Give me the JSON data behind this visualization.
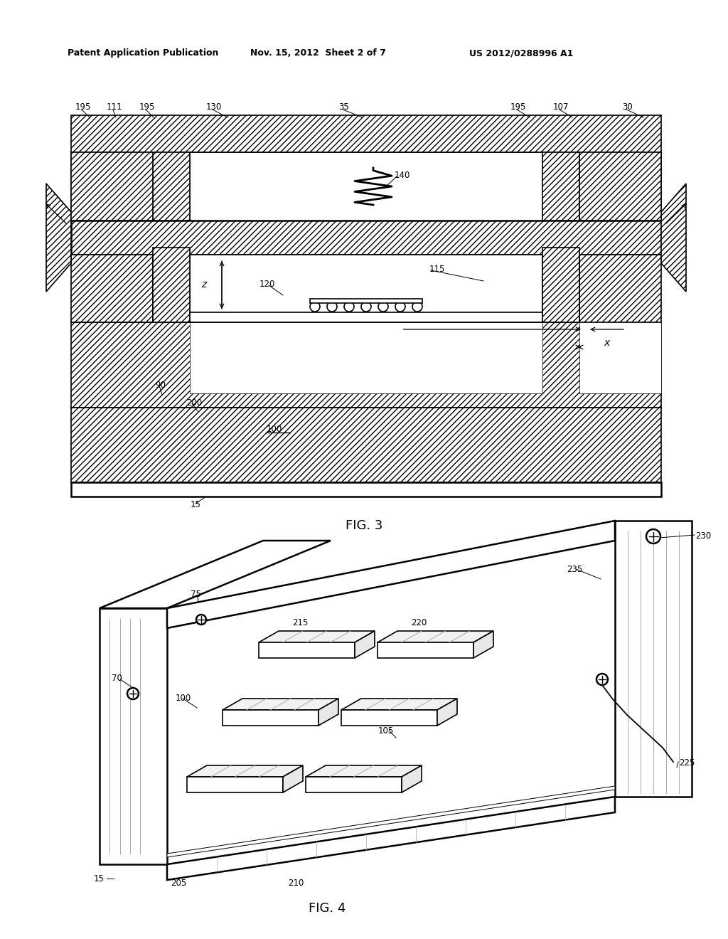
{
  "header_left": "Patent Application Publication",
  "header_mid": "Nov. 15, 2012  Sheet 2 of 7",
  "header_right": "US 2012/0288996 A1",
  "fig3_caption": "FIG. 3",
  "fig4_caption": "FIG. 4",
  "bg_color": "#ffffff"
}
